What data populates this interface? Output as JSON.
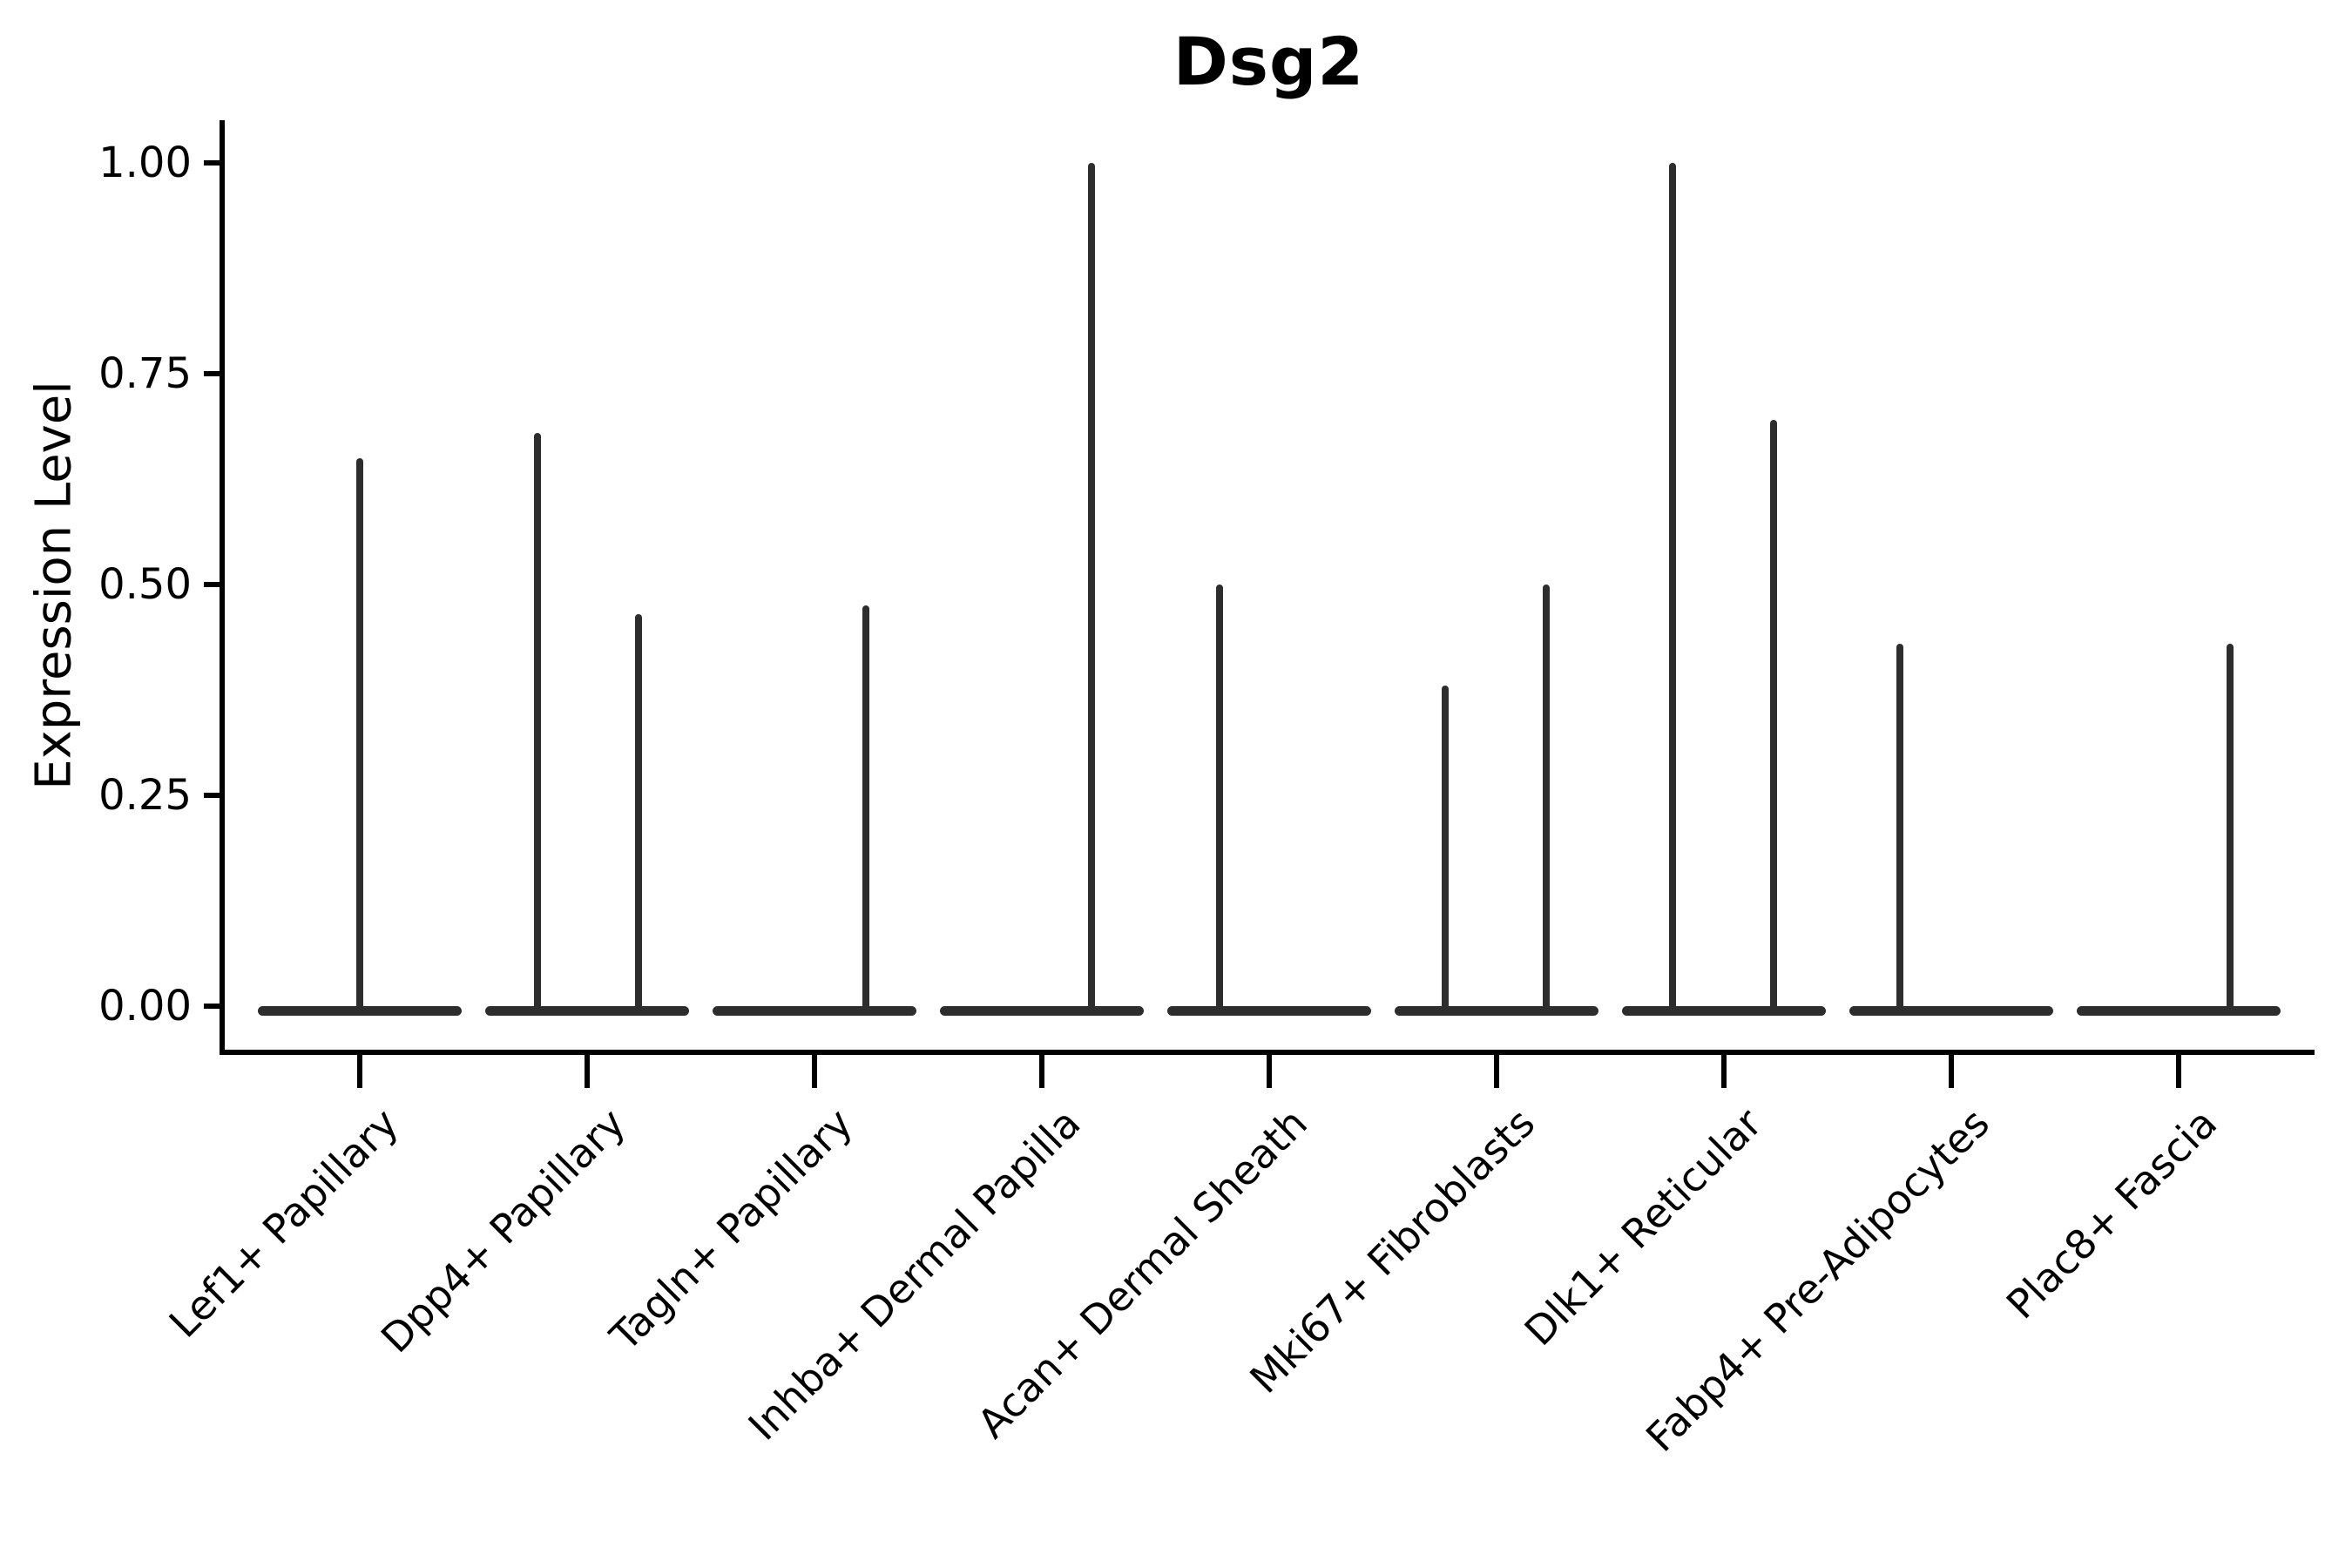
{
  "figure": {
    "title": "Dsg2"
  },
  "chart_data": {
    "type": "violin",
    "title": "Dsg2",
    "xlabel": "",
    "ylabel": "Expression Level",
    "ylim": [
      -0.05,
      1.05
    ],
    "yticks": [
      1.0,
      0.75,
      0.5,
      0.25,
      0.0
    ],
    "ytick_labels": [
      "1.00",
      "0.75",
      "0.50",
      "0.25",
      "0.00"
    ],
    "grid": false,
    "legend": "none",
    "x_tick_rotation": 45,
    "categories": [
      "Lef1+ Papillary",
      "Dpp4+ Papillary",
      "Tagln+ Papillary",
      "Inhba+ Dermal Papilla",
      "Acan+ Dermal Sheath",
      "Mki67+ Fibroblasts",
      "Dlk1+ Reticular",
      "Fabp4+ Pre-Adipocytes",
      "Plac8+ Fascia"
    ],
    "violins": [
      {
        "category": "Lef1+ Papillary",
        "base_value": 0,
        "base_halfwidth_frac": 0.45,
        "spikes": [
          {
            "offset_frac": 0.0,
            "max_value": 0.65
          }
        ]
      },
      {
        "category": "Dpp4+ Papillary",
        "base_value": 0,
        "base_halfwidth_frac": 0.45,
        "spikes": [
          {
            "offset_frac": -0.22,
            "max_value": 0.68
          },
          {
            "offset_frac": 0.225,
            "max_value": 0.465
          }
        ]
      },
      {
        "category": "Tagln+ Papillary",
        "base_value": 0,
        "base_halfwidth_frac": 0.45,
        "spikes": [
          {
            "offset_frac": 0.225,
            "max_value": 0.475
          }
        ]
      },
      {
        "category": "Inhba+ Dermal Papilla",
        "base_value": 0,
        "base_halfwidth_frac": 0.45,
        "spikes": [
          {
            "offset_frac": 0.22,
            "max_value": 1.0
          }
        ]
      },
      {
        "category": "Acan+ Dermal Sheath",
        "base_value": 0,
        "base_halfwidth_frac": 0.45,
        "spikes": [
          {
            "offset_frac": -0.22,
            "max_value": 0.5
          }
        ]
      },
      {
        "category": "Mki67+ Fibroblasts",
        "base_value": 0,
        "base_halfwidth_frac": 0.45,
        "spikes": [
          {
            "offset_frac": -0.225,
            "max_value": 0.38
          },
          {
            "offset_frac": 0.22,
            "max_value": 0.5
          }
        ]
      },
      {
        "category": "Dlk1+ Reticular",
        "base_value": 0,
        "base_halfwidth_frac": 0.45,
        "spikes": [
          {
            "offset_frac": -0.225,
            "max_value": 1.0
          },
          {
            "offset_frac": 0.22,
            "max_value": 0.695
          }
        ]
      },
      {
        "category": "Fabp4+ Pre-Adipocytes",
        "base_value": 0,
        "base_halfwidth_frac": 0.45,
        "spikes": [
          {
            "offset_frac": -0.225,
            "max_value": 0.43
          }
        ]
      },
      {
        "category": "Plac8+ Fascia",
        "base_value": 0,
        "base_halfwidth_frac": 0.45,
        "spikes": [
          {
            "offset_frac": 0.225,
            "max_value": 0.43
          }
        ]
      }
    ]
  }
}
